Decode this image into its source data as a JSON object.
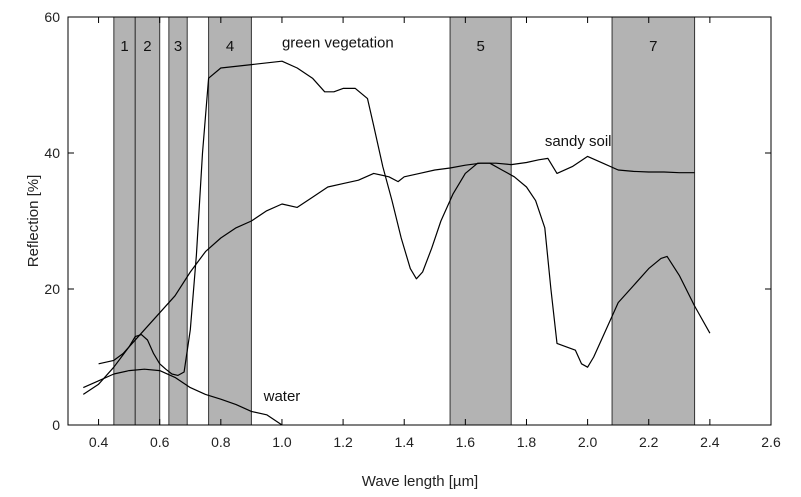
{
  "chart_data": {
    "type": "line",
    "title": "",
    "xlabel": "Wave length [µm]",
    "ylabel": "Reflection [%]",
    "xlim": [
      0.3,
      2.6
    ],
    "ylim": [
      0,
      60
    ],
    "x_ticks": [
      {
        "value": 0.4,
        "label": "0.4"
      },
      {
        "value": 0.6,
        "label": "0.6"
      },
      {
        "value": 0.8,
        "label": "0.8"
      },
      {
        "value": 1.0,
        "label": "1.0"
      },
      {
        "value": 1.2,
        "label": "1.2"
      },
      {
        "value": 1.4,
        "label": "1.4"
      },
      {
        "value": 1.6,
        "label": "1.6"
      },
      {
        "value": 1.8,
        "label": "1.8"
      },
      {
        "value": 2.0,
        "label": "2.0"
      },
      {
        "value": 2.2,
        "label": "2.2"
      },
      {
        "value": 2.4,
        "label": "2.4"
      },
      {
        "value": 2.6,
        "label": "2.6"
      }
    ],
    "y_ticks": [
      {
        "value": 0,
        "label": "0"
      },
      {
        "value": 20,
        "label": "20"
      },
      {
        "value": 40,
        "label": "40"
      },
      {
        "value": 60,
        "label": "60"
      }
    ],
    "grid": false,
    "bands": [
      {
        "label": "1",
        "from": 0.45,
        "to": 0.52
      },
      {
        "label": "2",
        "from": 0.52,
        "to": 0.6
      },
      {
        "label": "3",
        "from": 0.63,
        "to": 0.69
      },
      {
        "label": "4",
        "from": 0.76,
        "to": 0.9
      },
      {
        "label": "5",
        "from": 1.55,
        "to": 1.75
      },
      {
        "label": "7",
        "from": 2.08,
        "to": 2.35
      }
    ],
    "colors": {
      "band_fill": "#b3b3b3",
      "band_stroke": "#333333",
      "line": "#000000",
      "axis": "#000000"
    },
    "series": [
      {
        "name": "green vegetation",
        "x": [
          0.4,
          0.45,
          0.48,
          0.5,
          0.52,
          0.54,
          0.56,
          0.58,
          0.6,
          0.62,
          0.64,
          0.66,
          0.68,
          0.7,
          0.72,
          0.74,
          0.76,
          0.8,
          0.9,
          1.0,
          1.05,
          1.1,
          1.14,
          1.17,
          1.2,
          1.24,
          1.28,
          1.3,
          1.33,
          1.36,
          1.39,
          1.42,
          1.44,
          1.46,
          1.49,
          1.52,
          1.56,
          1.6,
          1.64,
          1.68,
          1.72,
          1.76,
          1.8,
          1.83,
          1.86,
          1.88,
          1.9,
          1.93,
          1.96,
          1.98,
          2.0,
          2.02,
          2.05,
          2.1,
          2.15,
          2.2,
          2.24,
          2.26,
          2.3,
          2.35,
          2.4
        ],
        "y": [
          9.0,
          9.5,
          10.5,
          11.5,
          13.0,
          13.3,
          12.5,
          10.5,
          9.0,
          8.2,
          7.5,
          7.3,
          7.8,
          14.0,
          25.0,
          40.0,
          51.0,
          52.5,
          53.0,
          53.5,
          52.5,
          51.0,
          49.0,
          49.0,
          49.5,
          49.5,
          48.0,
          44.0,
          38.0,
          33.0,
          27.5,
          23.0,
          21.5,
          22.5,
          26.0,
          30.0,
          34.0,
          37.0,
          38.5,
          38.5,
          37.5,
          36.5,
          35.0,
          33.0,
          29.0,
          20.0,
          12.0,
          11.5,
          11.0,
          9.0,
          8.5,
          10.0,
          13.0,
          18.0,
          20.5,
          23.0,
          24.5,
          24.8,
          22.0,
          17.5,
          13.5
        ]
      },
      {
        "name": "sandy soil",
        "x": [
          0.35,
          0.4,
          0.45,
          0.5,
          0.55,
          0.6,
          0.65,
          0.7,
          0.75,
          0.8,
          0.85,
          0.9,
          0.95,
          1.0,
          1.05,
          1.1,
          1.15,
          1.2,
          1.25,
          1.3,
          1.35,
          1.38,
          1.4,
          1.45,
          1.5,
          1.55,
          1.6,
          1.65,
          1.7,
          1.75,
          1.8,
          1.84,
          1.87,
          1.9,
          1.95,
          2.0,
          2.05,
          2.1,
          2.15,
          2.2,
          2.25,
          2.3,
          2.35
        ],
        "y": [
          4.5,
          6.0,
          8.5,
          11.5,
          14.0,
          16.5,
          19.0,
          22.5,
          25.5,
          27.5,
          29.0,
          30.0,
          31.5,
          32.5,
          32.0,
          33.5,
          35.0,
          35.5,
          36.0,
          37.0,
          36.5,
          35.8,
          36.5,
          37.0,
          37.5,
          37.8,
          38.2,
          38.5,
          38.5,
          38.3,
          38.6,
          39.0,
          39.2,
          37.0,
          38.0,
          39.5,
          38.5,
          37.5,
          37.3,
          37.2,
          37.2,
          37.1,
          37.1
        ]
      },
      {
        "name": "water",
        "x": [
          0.35,
          0.4,
          0.45,
          0.5,
          0.55,
          0.6,
          0.65,
          0.7,
          0.75,
          0.8,
          0.85,
          0.9,
          0.95,
          1.0
        ],
        "y": [
          5.5,
          6.5,
          7.5,
          8.0,
          8.2,
          8.0,
          7.0,
          5.5,
          4.5,
          3.8,
          3.0,
          2.0,
          1.5,
          0.0
        ]
      }
    ],
    "annotations": [
      {
        "text": "green vegetation",
        "x": 1.0,
        "y": 55.5
      },
      {
        "text": "sandy soil",
        "x": 1.86,
        "y": 41.0
      },
      {
        "text": "water",
        "x": 0.94,
        "y": 3.5
      }
    ]
  }
}
